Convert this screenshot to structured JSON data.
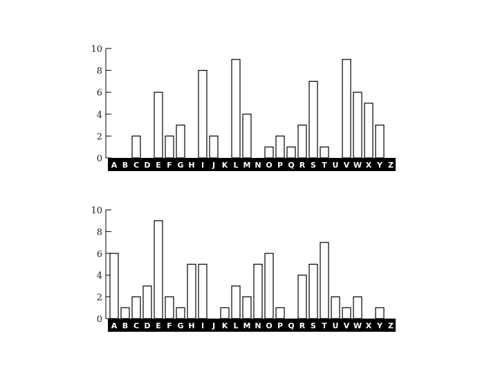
{
  "chart_data": [
    {
      "type": "bar",
      "categories": [
        "A",
        "B",
        "C",
        "D",
        "E",
        "F",
        "G",
        "H",
        "I",
        "J",
        "K",
        "L",
        "M",
        "N",
        "O",
        "P",
        "Q",
        "R",
        "S",
        "T",
        "U",
        "V",
        "W",
        "X",
        "Y",
        "Z"
      ],
      "values": [
        0,
        0,
        2,
        0,
        6,
        2,
        3,
        0,
        8,
        2,
        0,
        9,
        4,
        0,
        1,
        2,
        1,
        3,
        7,
        1,
        0,
        9,
        6,
        5,
        3,
        0
      ],
      "yticks": [
        0,
        2,
        4,
        6,
        8,
        10
      ],
      "ylim": [
        0,
        10
      ],
      "title": "",
      "xlabel": "",
      "ylabel": "",
      "grid": false,
      "bar_color": "#ffffff",
      "category_band_color": "#000000"
    },
    {
      "type": "bar",
      "categories": [
        "A",
        "B",
        "C",
        "D",
        "E",
        "F",
        "G",
        "H",
        "I",
        "J",
        "K",
        "L",
        "M",
        "N",
        "O",
        "P",
        "Q",
        "R",
        "S",
        "T",
        "U",
        "V",
        "W",
        "X",
        "Y",
        "Z"
      ],
      "values": [
        6,
        1,
        2,
        3,
        9,
        2,
        1,
        5,
        5,
        0,
        1,
        3,
        2,
        5,
        6,
        1,
        0,
        4,
        5,
        7,
        2,
        1,
        2,
        0,
        1,
        0
      ],
      "yticks": [
        0,
        2,
        4,
        6,
        8,
        10
      ],
      "ylim": [
        0,
        10
      ],
      "title": "",
      "xlabel": "",
      "ylabel": "",
      "grid": false,
      "bar_color": "#ffffff",
      "category_band_color": "#000000"
    }
  ]
}
